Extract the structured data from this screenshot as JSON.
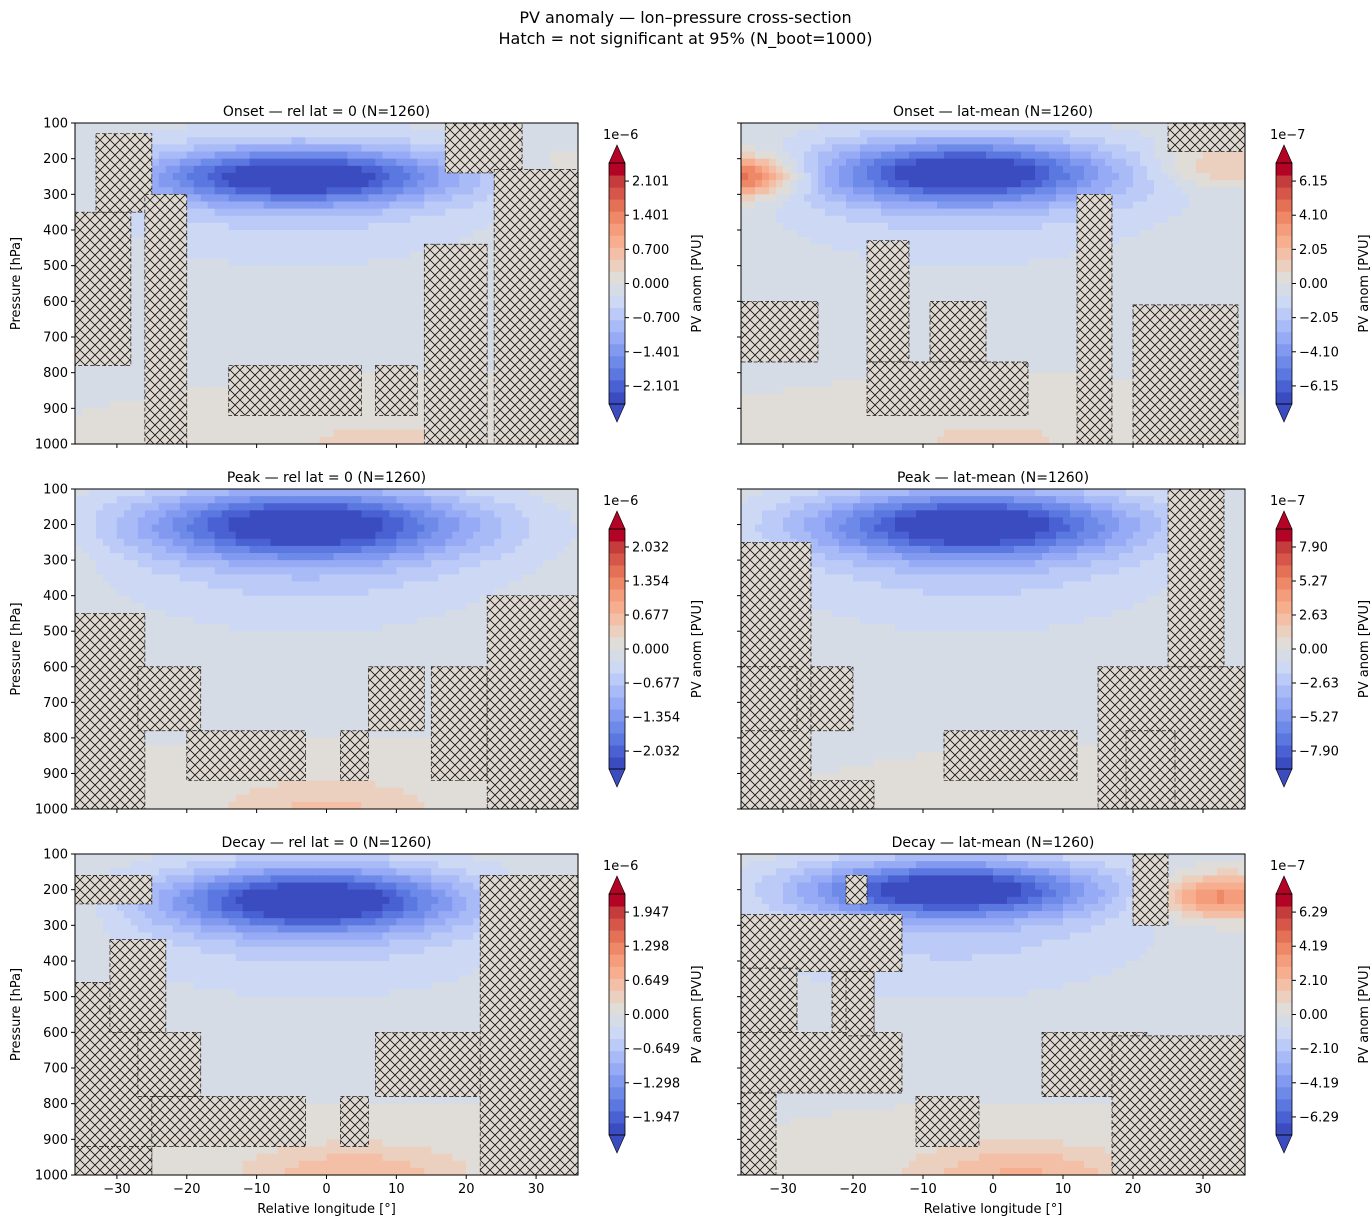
{
  "figure": {
    "title_line1": "PV anomaly — lon–pressure cross-section",
    "title_line2": "Hatch = not significant at 95% (N_boot=1000)"
  },
  "colormap": [
    "#3b4cc0",
    "#4961d2",
    "#5b77e0",
    "#6e8ae9",
    "#8299f0",
    "#96aaf5",
    "#a9bbf7",
    "#bccaf7",
    "#ccd8f4",
    "#d5dce5",
    "#e0dcd7",
    "#ecd0bf",
    "#f3c0a7",
    "#f6ae8f",
    "#f59c7c",
    "#ef8867",
    "#e47156",
    "#d6574a",
    "#c43c3c",
    "#b40426"
  ],
  "chart_data": [
    {
      "type": "heatmap",
      "panel": "onset-rel-lat-0",
      "title": "Onset — rel lat = 0  (N=1260)",
      "xlabel": "",
      "ylabel": "Pressure [hPa]",
      "xlim": [
        -36,
        36
      ],
      "ylim": [
        1000,
        100
      ],
      "xticks": [
        "−30",
        "−20",
        "−10",
        "0",
        "10",
        "20",
        "30"
      ],
      "yticks": [
        "100",
        "200",
        "300",
        "400",
        "500",
        "600",
        "700",
        "800",
        "900",
        "1000"
      ],
      "colorbar": {
        "label": "PV anom [PVU]",
        "scale": "1e−6",
        "ticks": [
          "2.101",
          "1.401",
          "0.700",
          "0.000",
          "−0.700",
          "−1.401",
          "−2.101"
        ],
        "range": [
          -2.6,
          2.6
        ]
      },
      "field": {
        "jet_amp": -2.4,
        "jet_center": [
          -4,
          250
        ],
        "jet_width": [
          21,
          75
        ],
        "side_amp": 0.35,
        "low_amp": 0.35,
        "low_center": 8,
        "right_upper": 0.25
      },
      "hatch_regions": [
        [
          -36,
          -28,
          350,
          780
        ],
        [
          -33,
          -25,
          130,
          350
        ],
        [
          -26,
          -20,
          300,
          1000
        ],
        [
          -14,
          5,
          780,
          920
        ],
        [
          7,
          13,
          780,
          920
        ],
        [
          14,
          23,
          440,
          1000
        ],
        [
          17,
          28,
          100,
          240
        ],
        [
          24,
          36,
          230,
          1000
        ]
      ]
    },
    {
      "type": "heatmap",
      "panel": "onset-lat-mean",
      "title": "Onset — lat-mean  (N=1260)",
      "xlabel": "",
      "ylabel": "",
      "xlim": [
        -36,
        36
      ],
      "ylim": [
        1000,
        100
      ],
      "xticks": [
        "−30",
        "−20",
        "−10",
        "0",
        "10",
        "20",
        "30"
      ],
      "yticks": [
        "100",
        "200",
        "300",
        "400",
        "500",
        "600",
        "700",
        "800",
        "900",
        "1000"
      ],
      "colorbar": {
        "label": "PV anom [PVU]",
        "scale": "1e−7",
        "ticks": [
          "6.15",
          "4.10",
          "2.05",
          "0.00",
          "−2.05",
          "−4.10",
          "−6.15"
        ],
        "range": [
          -7.5,
          7.5
        ]
      },
      "field": {
        "jet_amp": -6.8,
        "jet_center": [
          -4,
          240
        ],
        "jet_width": [
          20,
          85
        ],
        "side_amp": 0.5,
        "low_amp": 1.0,
        "low_center": 0,
        "left_upper": 5.5,
        "right_upper": 2.0
      },
      "hatch_regions": [
        [
          -36,
          -25,
          600,
          770
        ],
        [
          -18,
          -12,
          430,
          770
        ],
        [
          -9,
          -1,
          600,
          770
        ],
        [
          -18,
          5,
          770,
          920
        ],
        [
          12,
          17,
          300,
          1000
        ],
        [
          20,
          35,
          610,
          1000
        ],
        [
          25,
          36,
          100,
          180
        ]
      ]
    },
    {
      "type": "heatmap",
      "panel": "peak-rel-lat-0",
      "title": "Peak — rel lat = 0  (N=1260)",
      "xlabel": "",
      "ylabel": "Pressure [hPa]",
      "xlim": [
        -36,
        36
      ],
      "ylim": [
        1000,
        100
      ],
      "xticks": [
        "−30",
        "−20",
        "−10",
        "0",
        "10",
        "20",
        "30"
      ],
      "yticks": [
        "100",
        "200",
        "300",
        "400",
        "500",
        "600",
        "700",
        "800",
        "900",
        "1000"
      ],
      "colorbar": {
        "label": "PV anom [PVU]",
        "scale": "1e−6",
        "ticks": [
          "2.032",
          "1.354",
          "0.677",
          "0.000",
          "−0.677",
          "−1.354",
          "−2.032"
        ],
        "range": [
          -2.5,
          2.5
        ]
      },
      "field": {
        "jet_amp": -2.35,
        "jet_center": [
          -3,
          200
        ],
        "jet_width": [
          23,
          95
        ],
        "side_amp": 0.15,
        "low_amp": 0.55,
        "low_center": 0,
        "right_upper": 0.0
      },
      "hatch_regions": [
        [
          -36,
          -26,
          450,
          1000
        ],
        [
          -27,
          -18,
          600,
          780
        ],
        [
          -20,
          -3,
          780,
          920
        ],
        [
          2,
          6,
          780,
          920
        ],
        [
          6,
          14,
          600,
          780
        ],
        [
          15,
          23,
          600,
          920
        ],
        [
          23,
          36,
          400,
          1000
        ]
      ]
    },
    {
      "type": "heatmap",
      "panel": "peak-lat-mean",
      "title": "Peak — lat-mean  (N=1260)",
      "xlabel": "",
      "ylabel": "",
      "xlim": [
        -36,
        36
      ],
      "ylim": [
        1000,
        100
      ],
      "xticks": [
        "−30",
        "−20",
        "−10",
        "0",
        "10",
        "20",
        "30"
      ],
      "yticks": [
        "100",
        "200",
        "300",
        "400",
        "500",
        "600",
        "700",
        "800",
        "900",
        "1000"
      ],
      "colorbar": {
        "label": "PV anom [PVU]",
        "scale": "1e−7",
        "ticks": [
          "7.90",
          "5.27",
          "2.63",
          "0.00",
          "−2.63",
          "−5.27",
          "−7.90"
        ],
        "range": [
          -9.5,
          9.5
        ]
      },
      "field": {
        "jet_amp": -9.0,
        "jet_center": [
          -3,
          200
        ],
        "jet_width": [
          22,
          90
        ],
        "side_amp": 0.2,
        "low_amp": 0.5,
        "low_center": 12,
        "right_upper": 0.3
      },
      "hatch_regions": [
        [
          -36,
          -26,
          250,
          1000
        ],
        [
          -36,
          -28,
          600,
          780
        ],
        [
          -26,
          -20,
          600,
          780
        ],
        [
          -7,
          12,
          780,
          920
        ],
        [
          -26,
          -17,
          920,
          1000
        ],
        [
          15,
          36,
          600,
          1000
        ],
        [
          25,
          33,
          100,
          600
        ],
        [
          19,
          26,
          780,
          1000
        ]
      ]
    },
    {
      "type": "heatmap",
      "panel": "decay-rel-lat-0",
      "title": "Decay — rel lat = 0  (N=1260)",
      "xlabel": "Relative longitude [°]",
      "ylabel": "Pressure [hPa]",
      "xlim": [
        -36,
        36
      ],
      "ylim": [
        1000,
        100
      ],
      "xticks": [
        "−30",
        "−20",
        "−10",
        "0",
        "10",
        "20",
        "30"
      ],
      "yticks": [
        "100",
        "200",
        "300",
        "400",
        "500",
        "600",
        "700",
        "800",
        "900",
        "1000"
      ],
      "colorbar": {
        "label": "PV anom [PVU]",
        "scale": "1e−6",
        "ticks": [
          "1.947",
          "1.298",
          "0.649",
          "0.000",
          "−0.649",
          "−1.298",
          "−1.947"
        ],
        "range": [
          -2.4,
          2.4
        ]
      },
      "field": {
        "jet_amp": -2.3,
        "jet_center": [
          -2,
          230
        ],
        "jet_width": [
          20,
          85
        ],
        "side_amp": 0.2,
        "low_amp": 0.7,
        "low_center": 4,
        "right_upper": 0.3
      },
      "hatch_regions": [
        [
          -36,
          -25,
          160,
          240
        ],
        [
          -36,
          -25,
          460,
          1000
        ],
        [
          -31,
          -23,
          340,
          600
        ],
        [
          -27,
          -18,
          600,
          780
        ],
        [
          -25,
          -3,
          780,
          920
        ],
        [
          -36,
          -25,
          920,
          1000
        ],
        [
          2,
          6,
          780,
          920
        ],
        [
          7,
          23,
          600,
          780
        ],
        [
          22,
          36,
          160,
          1000
        ]
      ]
    },
    {
      "type": "heatmap",
      "panel": "decay-lat-mean",
      "title": "Decay — lat-mean  (N=1260)",
      "xlabel": "Relative longitude [°]",
      "ylabel": "",
      "xlim": [
        -36,
        36
      ],
      "ylim": [
        1000,
        100
      ],
      "xticks": [
        "−30",
        "−20",
        "−10",
        "0",
        "10",
        "20",
        "30"
      ],
      "yticks": [
        "100",
        "200",
        "300",
        "400",
        "500",
        "600",
        "700",
        "800",
        "900",
        "1000"
      ],
      "colorbar": {
        "label": "PV anom [PVU]",
        "scale": "1e−7",
        "ticks": [
          "6.29",
          "4.19",
          "2.10",
          "0.00",
          "−2.10",
          "−4.19",
          "−6.29"
        ],
        "range": [
          -7.6,
          7.6
        ]
      },
      "field": {
        "jet_amp": -7.2,
        "jet_center": [
          -6,
          200
        ],
        "jet_width": [
          20,
          75
        ],
        "side_amp": 0.3,
        "low_amp": 2.4,
        "low_center": 4,
        "right_upper": 4.5
      },
      "hatch_regions": [
        [
          -36,
          -13,
          270,
          430
        ],
        [
          -36,
          -28,
          420,
          610
        ],
        [
          -23,
          -17,
          430,
          610
        ],
        [
          -36,
          -13,
          600,
          770
        ],
        [
          -11,
          -2,
          780,
          920
        ],
        [
          -36,
          -31,
          770,
          1000
        ],
        [
          -21,
          -17,
          430,
          610
        ],
        [
          7,
          22,
          600,
          780
        ],
        [
          17,
          36,
          610,
          1000
        ],
        [
          20,
          25,
          100,
          300
        ],
        [
          -21,
          -18,
          160,
          240
        ]
      ]
    }
  ]
}
